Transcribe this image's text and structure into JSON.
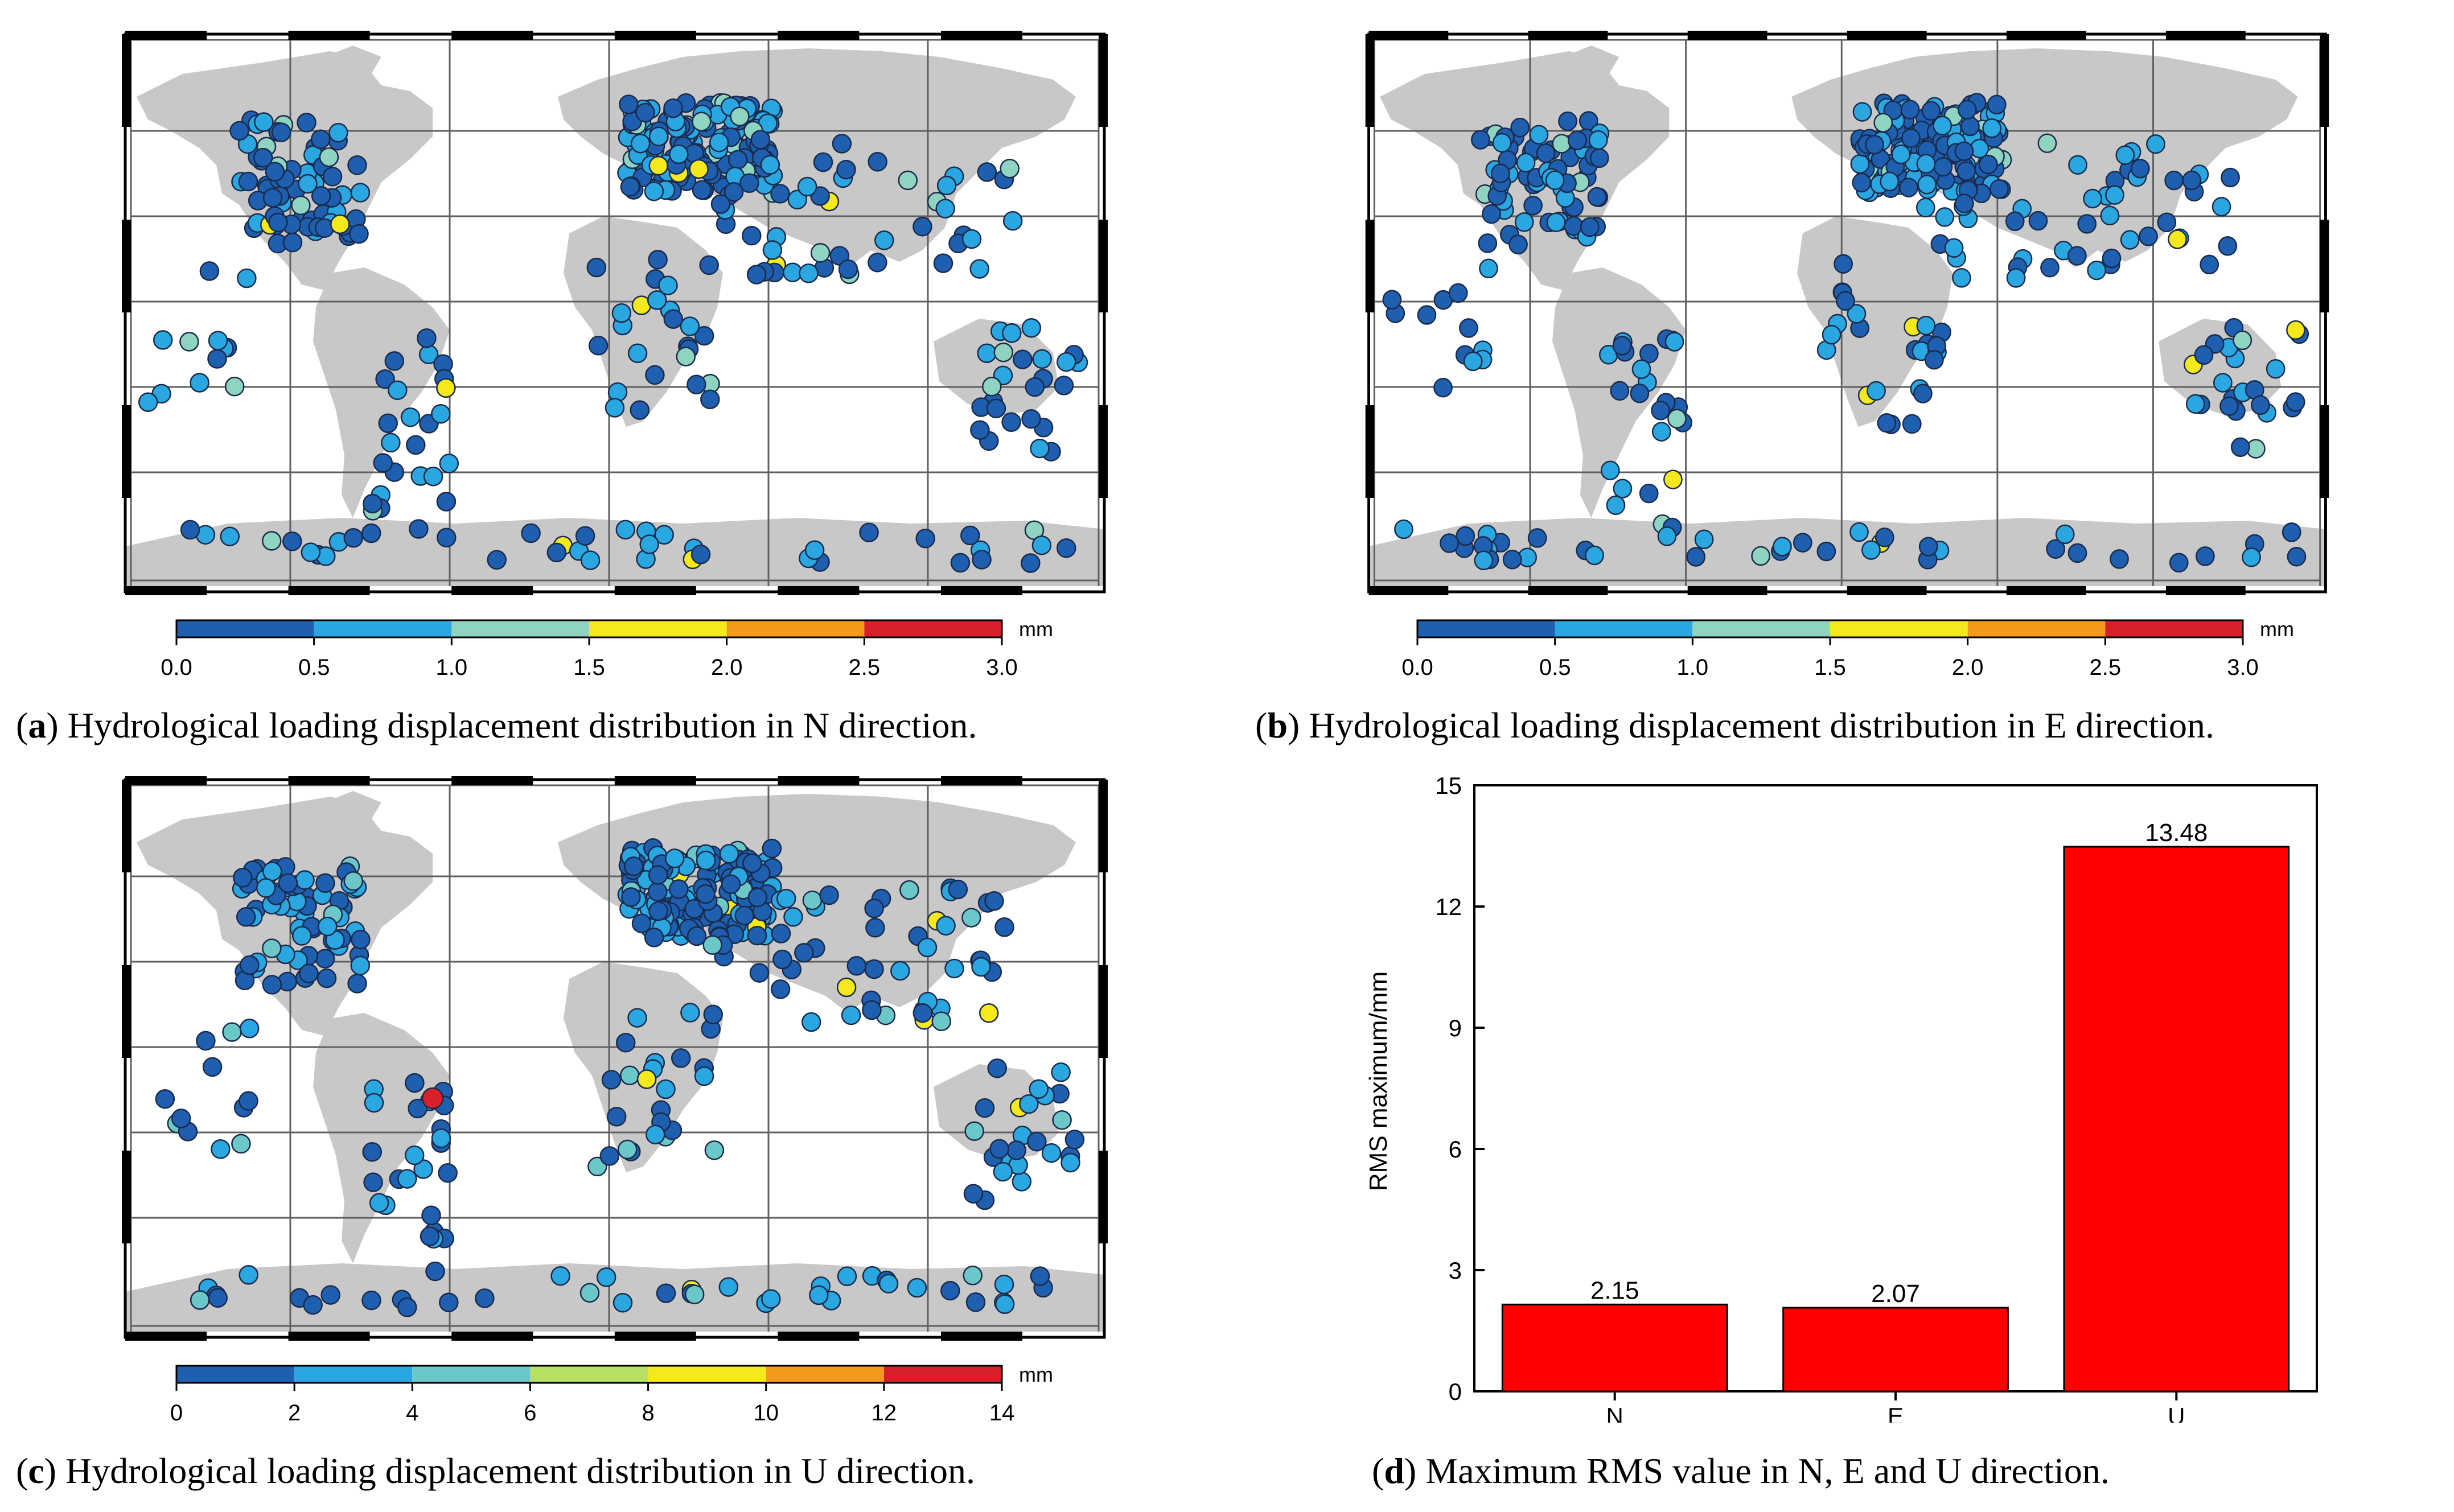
{
  "panels": {
    "a": {
      "letter": "a",
      "caption": "Hydrological loading displacement distribution in N direction.",
      "colorbar": {
        "unit": "mm",
        "ticks": [
          "0.0",
          "0.5",
          "1.0",
          "1.5",
          "2.0",
          "2.5",
          "3.0"
        ],
        "colors": [
          "#1f5fb0",
          "#2aa6e0",
          "#8fd4c0",
          "#f5e81c",
          "#f39a1c",
          "#d8202a"
        ]
      }
    },
    "b": {
      "letter": "b",
      "caption": "Hydrological loading displacement distribution in E direction.",
      "colorbar": {
        "unit": "mm",
        "ticks": [
          "0.0",
          "0.5",
          "1.0",
          "1.5",
          "2.0",
          "2.5",
          "3.0"
        ],
        "colors": [
          "#1f5fb0",
          "#2aa6e0",
          "#8fd4c0",
          "#f5e81c",
          "#f39a1c",
          "#d8202a"
        ]
      }
    },
    "c": {
      "letter": "c",
      "caption": "Hydrological loading displacement distribution in U direction.",
      "colorbar": {
        "unit": "mm",
        "ticks": [
          "0",
          "2",
          "4",
          "6",
          "8",
          "10",
          "12",
          "14"
        ],
        "colors": [
          "#1f5fb0",
          "#2aa6e0",
          "#6cc8c8",
          "#b8e064",
          "#f5e81c",
          "#f39a1c",
          "#d8202a"
        ]
      }
    },
    "d": {
      "letter": "d",
      "caption": "Maximum RMS value in N, E and U direction."
    }
  },
  "chart_data": [
    {
      "type": "bar",
      "title": "",
      "categories": [
        "N",
        "E",
        "U"
      ],
      "values": [
        2.15,
        2.07,
        13.48
      ],
      "data_labels": [
        "2.15",
        "2.07",
        "13.48"
      ],
      "xlabel": "",
      "ylabel": "RMS maximum/mm",
      "ylim": [
        0,
        15
      ],
      "yticks": [
        "0",
        "3",
        "6",
        "9",
        "12",
        "15"
      ],
      "bar_color": "#ff0000"
    }
  ]
}
